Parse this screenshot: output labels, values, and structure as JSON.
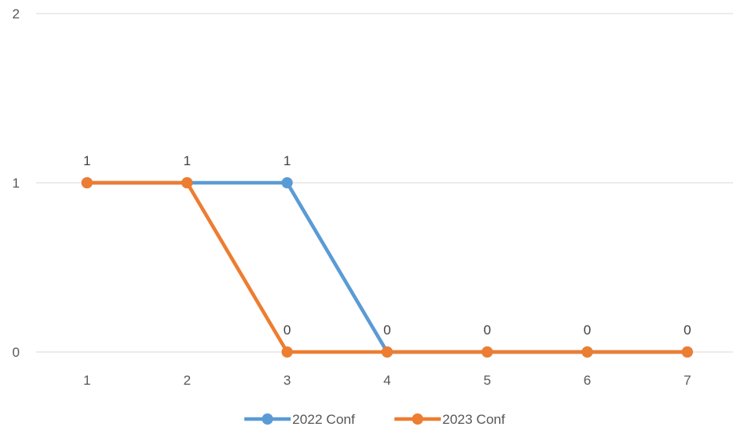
{
  "chart_data": {
    "type": "line",
    "title": "",
    "xlabel": "",
    "ylabel": "",
    "x": [
      "1",
      "2",
      "3",
      "4",
      "5",
      "6",
      "7"
    ],
    "ylim": [
      0,
      2
    ],
    "yticks": [
      "0",
      "1",
      "2"
    ],
    "grid": true,
    "legend": "bottom",
    "series": [
      {
        "name": "2022 Conf",
        "values": [
          1,
          1,
          1,
          0,
          0,
          0,
          0
        ],
        "labels": [
          "",
          "",
          "1",
          "0",
          "0",
          "0",
          "0"
        ],
        "color": "#5b9bd5"
      },
      {
        "name": "2023 Conf",
        "values": [
          1,
          1,
          0,
          0,
          0,
          0,
          0
        ],
        "labels": [
          "1",
          "1",
          "0",
          "",
          "",
          "",
          ""
        ],
        "color": "#ed7d31"
      }
    ]
  }
}
